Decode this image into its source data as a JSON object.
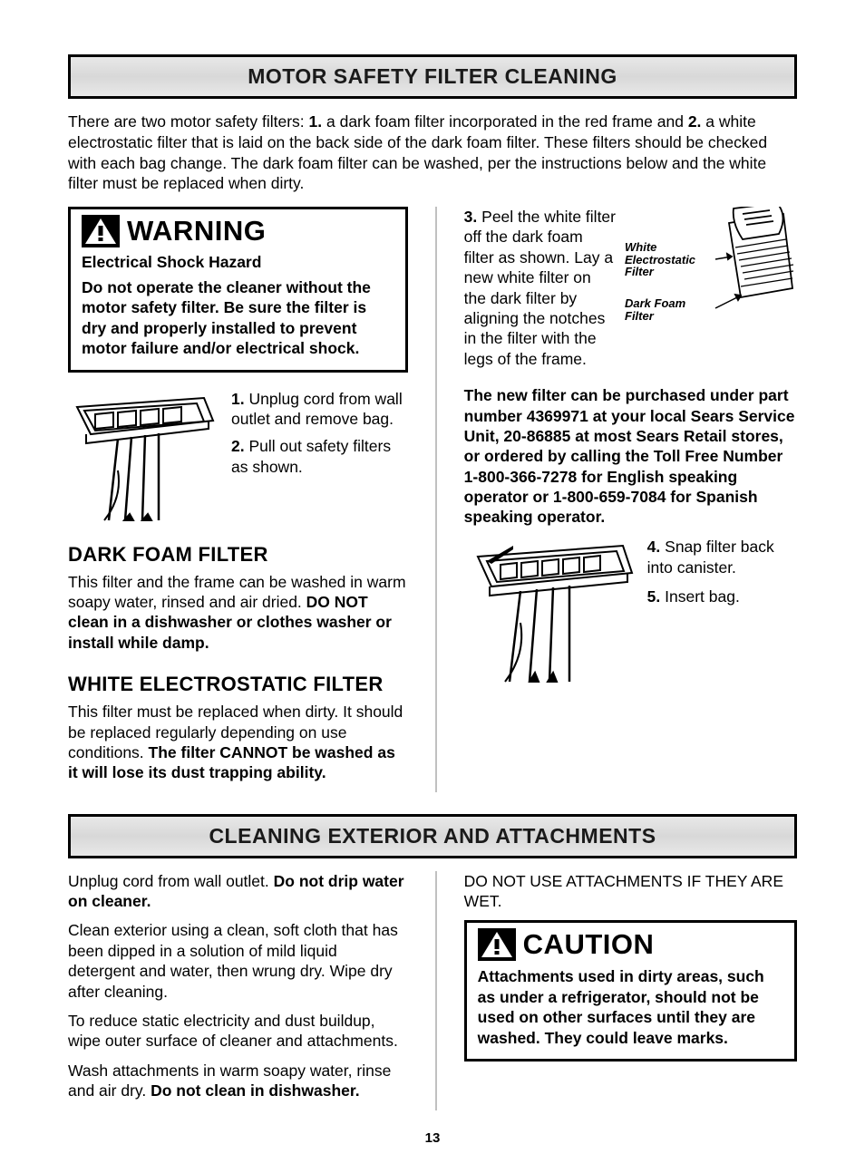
{
  "page_number": "13",
  "section1": {
    "title": "MOTOR SAFETY FILTER CLEANING",
    "intro_html": "There are two motor safety filters: <b>1.</b> a dark foam filter incorporated in the red frame and <b>2.</b> a white electrostatic filter that is laid on the back side of the dark foam filter. These filters should be checked with each bag change. The dark foam filter can be washed, per the instructions below and the white filter must be replaced when dirty.",
    "warning": {
      "title": "WARNING",
      "subtitle": "Electrical Shock Hazard",
      "body": "Do not operate the cleaner without the motor safety filter. Be sure the filter is dry and properly installed to prevent motor failure and/or electrical shock."
    },
    "step1_html": "<b>1.</b> Unplug cord from wall outlet and remove bag.",
    "step2_html": "<b>2.</b> Pull out safety filters as shown.",
    "dark_foam": {
      "title": "DARK FOAM FILTER",
      "body_html": "This filter and the frame can be washed in warm soapy water, rinsed and air dried. <b>DO NOT clean in a dishwasher or clothes washer or install while damp.</b>"
    },
    "white_filter": {
      "title": "WHITE ELECTROSTATIC FILTER",
      "body_html": "This filter must be replaced when dirty. It should be replaced regularly depending on use conditions. <b>The filter CANNOT be washed as it will lose its dust trapping ability.</b>"
    },
    "step3_html": "<b>3.</b> Peel the white filter off the dark foam filter as shown. Lay a new white filter on the dark filter by aligning the notches in the filter with the legs of the frame.",
    "diagram_labels": {
      "white": "White Electrostatic Filter",
      "dark": "Dark Foam Filter"
    },
    "part_info": "The new filter can be purchased under part number 4369971 at your local Sears Service Unit, 20-86885 at most Sears Retail stores, or ordered by calling the Toll Free Number 1-800-366-7278 for English speaking operator or 1-800-659-7084 for Spanish speaking operator.",
    "step4_html": "<b>4.</b> Snap filter back into canister.",
    "step5_html": "<b>5.</b> Insert bag."
  },
  "section2": {
    "title": "CLEANING EXTERIOR AND ATTACHMENTS",
    "left_paras": [
      "Unplug cord from wall outlet. <b>Do not drip water on cleaner.</b>",
      "Clean exterior using a clean, soft cloth that has been dipped in a solution of mild liquid detergent and water, then wrung dry. Wipe dry after cleaning.",
      "To reduce static electricity and dust buildup, wipe outer surface of cleaner and attachments.",
      "Wash attachments in warm soapy water, rinse and air dry. <b>Do not clean in dishwasher.</b>"
    ],
    "right_top": "DO NOT USE ATTACHMENTS IF THEY ARE WET.",
    "caution": {
      "title": "CAUTION",
      "body": "Attachments used in dirty areas, such as under a refrigerator, should not be used on other surfaces until they are washed. They could leave marks."
    }
  },
  "colors": {
    "text": "#000000",
    "banner_border": "#000000",
    "banner_bg_top": "#e8e8e8",
    "banner_bg_mid": "#d8d8d8"
  }
}
